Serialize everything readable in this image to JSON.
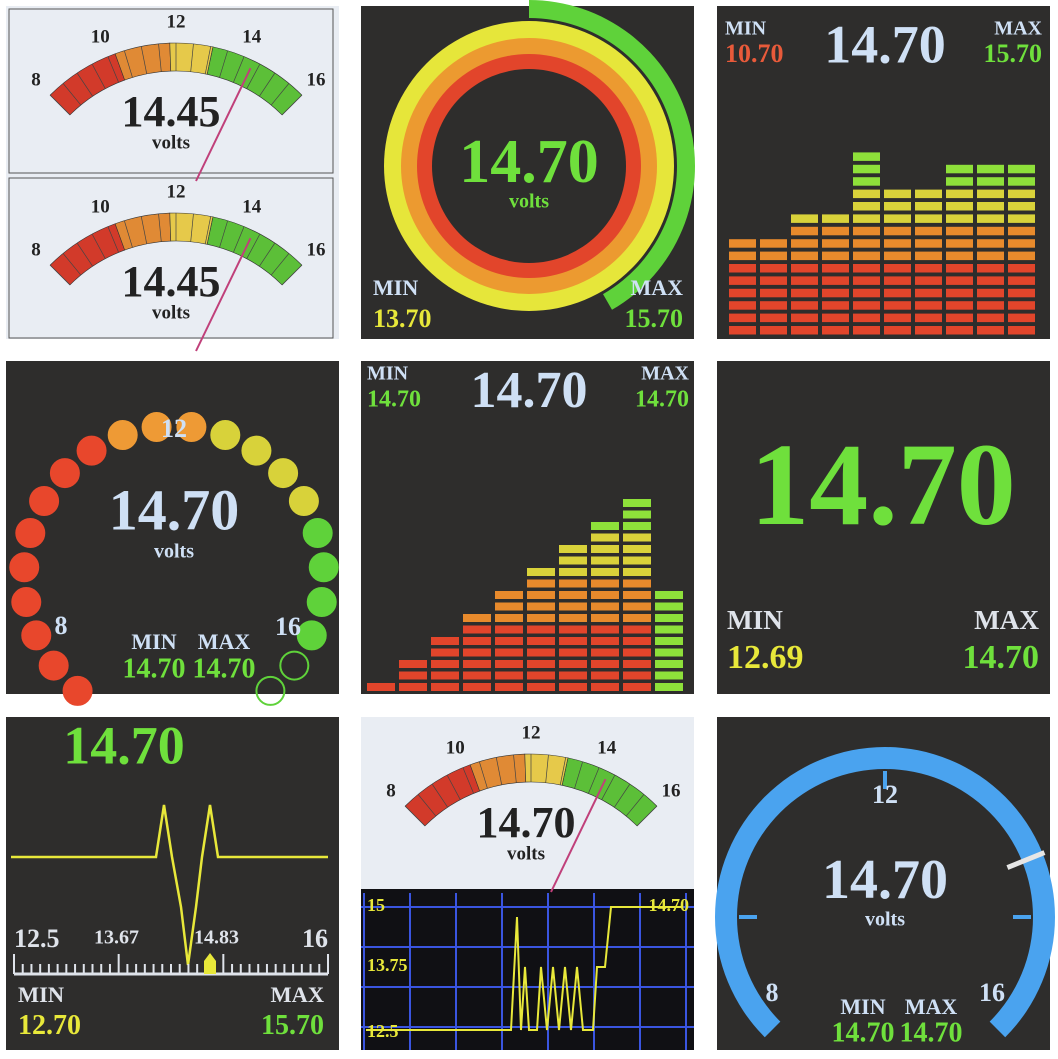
{
  "panels": [
    {
      "meters": [
        {
          "scale": [
            "8",
            "10",
            "12",
            "14",
            "16"
          ],
          "reading": "14.45",
          "unit": "volts"
        },
        {
          "scale": [
            "8",
            "10",
            "12",
            "14",
            "16"
          ],
          "reading": "14.45",
          "unit": "volts"
        }
      ]
    },
    {
      "reading": "14.70",
      "unit": "volts",
      "min_label": "MIN",
      "min": "13.70",
      "max_label": "MAX",
      "max": "15.70"
    },
    {
      "min_label": "MIN",
      "min": "10.70",
      "reading": "14.70",
      "max_label": "MAX",
      "max": "15.70"
    },
    {
      "scale": [
        "12",
        "8",
        "16"
      ],
      "reading": "14.70",
      "unit": "volts",
      "min_label": "MIN",
      "min": "14.70",
      "max_label": "MAX",
      "max": "14.70"
    },
    {
      "min_label": "MIN",
      "min": "14.70",
      "reading": "14.70",
      "max_label": "MAX",
      "max": "14.70"
    },
    {
      "reading": "14.70",
      "min_label": "MIN",
      "min": "12.69",
      "max_label": "MAX",
      "max": "14.70"
    },
    {
      "reading": "14.70",
      "scale": [
        "12.5",
        "13.67",
        "14.83",
        "16"
      ],
      "min_label": "MIN",
      "min": "12.70",
      "max_label": "MAX",
      "max": "15.70"
    },
    {
      "meter": {
        "scale": [
          "8",
          "10",
          "12",
          "14",
          "16"
        ],
        "reading": "14.70",
        "unit": "volts"
      },
      "graph_scale": [
        "15",
        "13.75",
        "12.5"
      ],
      "graph_value": "14.70"
    },
    {
      "scale": [
        "12",
        "8",
        "16"
      ],
      "reading": "14.70",
      "unit": "volts",
      "min_label": "MIN",
      "min": "14.70",
      "max_label": "MAX",
      "max": "14.70"
    }
  ]
}
